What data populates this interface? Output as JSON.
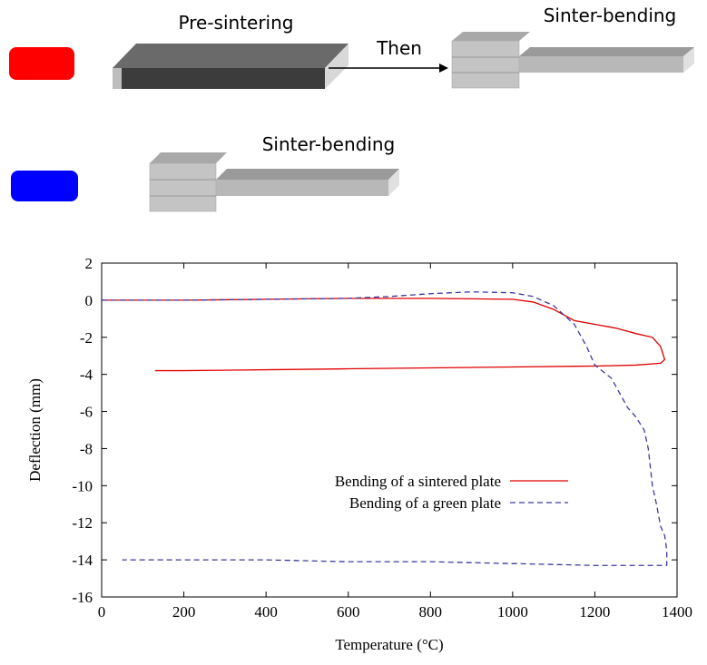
{
  "diagram": {
    "top_label": "Pre-sintering",
    "arrow_label": "Then",
    "top_result_label": "Sinter-bending",
    "bottom_label": "Sinter-bending"
  },
  "chart_data": {
    "type": "line",
    "xlabel": "Temperature (°C)",
    "ylabel": "Deflection (mm)",
    "xlim": [
      0,
      1400
    ],
    "xticks": [
      0,
      200,
      400,
      600,
      800,
      1000,
      1200,
      1400
    ],
    "ylim": [
      -16,
      2
    ],
    "yticks": [
      -16,
      -14,
      -12,
      -10,
      -8,
      -6,
      -4,
      -2,
      0,
      2
    ],
    "series": [
      {
        "name": "Bending of a sintered plate",
        "color": "#e00000",
        "dash": "solid",
        "x": [
          0,
          200,
          400,
          600,
          800,
          1000,
          1050,
          1100,
          1150,
          1200,
          1250,
          1300,
          1340,
          1360,
          1370,
          1360,
          1300,
          1200,
          1000,
          800,
          600,
          400,
          200,
          130
        ],
        "values": [
          0,
          0,
          0.05,
          0.1,
          0.1,
          0.05,
          -0.1,
          -0.5,
          -1.1,
          -1.3,
          -1.5,
          -1.8,
          -2.0,
          -2.5,
          -3.2,
          -3.4,
          -3.5,
          -3.55,
          -3.6,
          -3.65,
          -3.7,
          -3.75,
          -3.8,
          -3.8
        ]
      },
      {
        "name": "Bending of a green plate",
        "color": "#3a3aa0",
        "dash": "dashed",
        "x": [
          0,
          200,
          400,
          600,
          700,
          800,
          900,
          1000,
          1050,
          1100,
          1150,
          1180,
          1200,
          1240,
          1260,
          1280,
          1300,
          1320,
          1330,
          1335,
          1340,
          1350,
          1360,
          1370,
          1375,
          1375,
          1300,
          1200,
          1000,
          800,
          600,
          400,
          200,
          50
        ],
        "values": [
          0,
          0,
          0.05,
          0.1,
          0.2,
          0.35,
          0.45,
          0.4,
          0.2,
          -0.3,
          -1.3,
          -2.5,
          -3.5,
          -4.2,
          -5.0,
          -5.8,
          -6.3,
          -7.0,
          -8.0,
          -9.0,
          -10.0,
          -11.0,
          -12.2,
          -12.7,
          -13.5,
          -14.3,
          -14.3,
          -14.3,
          -14.2,
          -14.1,
          -14.1,
          -14.0,
          -14.0,
          -14.0
        ]
      }
    ]
  }
}
